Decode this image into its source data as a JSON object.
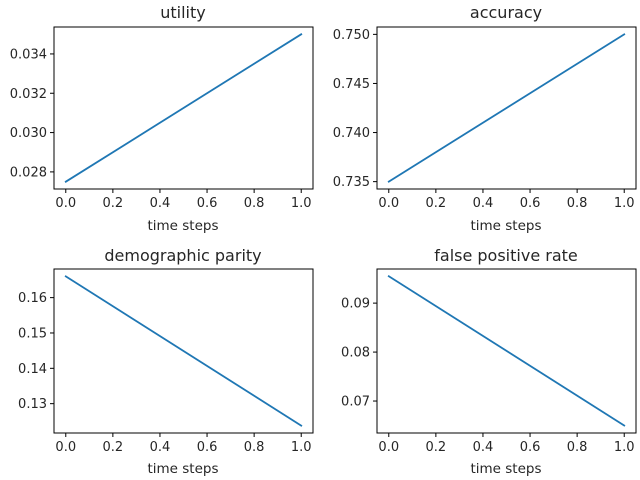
{
  "colors": {
    "line": "#1f77b4",
    "axes": "#000000",
    "background": "#ffffff"
  },
  "chart_data": [
    {
      "type": "line",
      "title": "utility",
      "xlabel": "time steps",
      "ylabel": "",
      "xlim": [
        -0.05,
        1.05
      ],
      "ylim": [
        0.02713,
        0.03537
      ],
      "xticks": [
        0.0,
        0.2,
        0.4,
        0.6,
        0.8,
        1.0
      ],
      "xtick_labels": [
        "0.0",
        "0.2",
        "0.4",
        "0.6",
        "0.8",
        "1.0"
      ],
      "yticks": [
        0.028,
        0.03,
        0.032,
        0.034
      ],
      "ytick_labels": [
        "0.028",
        "0.030",
        "0.032",
        "0.034"
      ],
      "series": [
        {
          "name": "utility",
          "x": [
            0.0,
            1.0
          ],
          "y": [
            0.0275,
            0.035
          ]
        }
      ]
    },
    {
      "type": "line",
      "title": "accuracy",
      "xlabel": "time steps",
      "ylabel": "",
      "xlim": [
        -0.05,
        1.05
      ],
      "ylim": [
        0.73425,
        0.75075
      ],
      "xticks": [
        0.0,
        0.2,
        0.4,
        0.6,
        0.8,
        1.0
      ],
      "xtick_labels": [
        "0.0",
        "0.2",
        "0.4",
        "0.6",
        "0.8",
        "1.0"
      ],
      "yticks": [
        0.735,
        0.74,
        0.745,
        0.75
      ],
      "ytick_labels": [
        "0.735",
        "0.740",
        "0.745",
        "0.750"
      ],
      "series": [
        {
          "name": "accuracy",
          "x": [
            0.0,
            1.0
          ],
          "y": [
            0.735,
            0.75
          ]
        }
      ]
    },
    {
      "type": "line",
      "title": "demographic parity",
      "xlabel": "time steps",
      "ylabel": "",
      "xlim": [
        -0.05,
        1.05
      ],
      "ylim": [
        0.1217,
        0.1681
      ],
      "xticks": [
        0.0,
        0.2,
        0.4,
        0.6,
        0.8,
        1.0
      ],
      "xtick_labels": [
        "0.0",
        "0.2",
        "0.4",
        "0.6",
        "0.8",
        "1.0"
      ],
      "yticks": [
        0.13,
        0.14,
        0.15,
        0.16
      ],
      "ytick_labels": [
        "0.13",
        "0.14",
        "0.15",
        "0.16"
      ],
      "series": [
        {
          "name": "demographic parity",
          "x": [
            0.0,
            1.0
          ],
          "y": [
            0.166,
            0.1238
          ]
        }
      ]
    },
    {
      "type": "line",
      "title": "false positive rate",
      "xlabel": "time steps",
      "ylabel": "",
      "xlim": [
        -0.05,
        1.05
      ],
      "ylim": [
        0.06347,
        0.09697
      ],
      "xticks": [
        0.0,
        0.2,
        0.4,
        0.6,
        0.8,
        1.0
      ],
      "xtick_labels": [
        "0.0",
        "0.2",
        "0.4",
        "0.6",
        "0.8",
        "1.0"
      ],
      "yticks": [
        0.07,
        0.08,
        0.09
      ],
      "ytick_labels": [
        "0.07",
        "0.08",
        "0.09"
      ],
      "series": [
        {
          "name": "false positive rate",
          "x": [
            0.0,
            1.0
          ],
          "y": [
            0.0955,
            0.065
          ]
        }
      ]
    }
  ]
}
